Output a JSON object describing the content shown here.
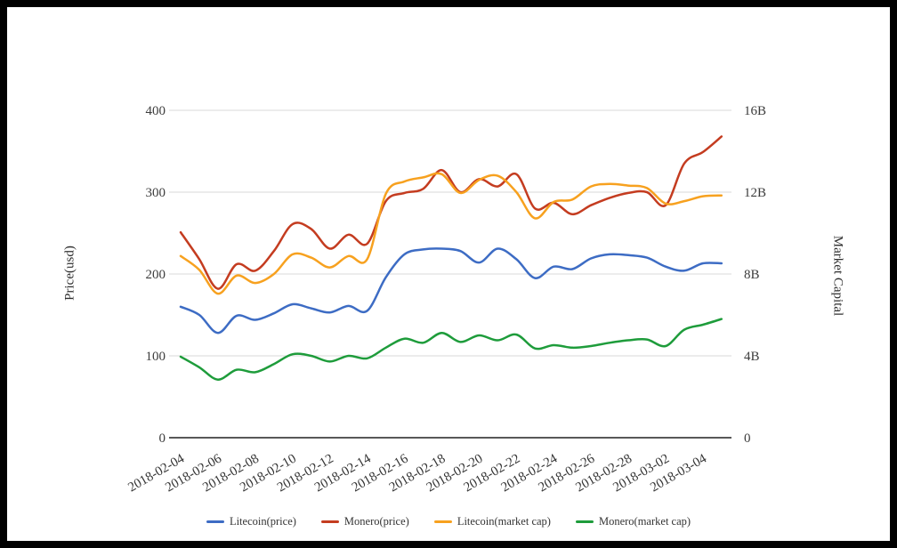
{
  "chart_data": {
    "type": "line",
    "smooth": true,
    "grid": true,
    "legend_position": "bottom",
    "x": [
      "2018-02-04",
      "2018-02-05",
      "2018-02-06",
      "2018-02-07",
      "2018-02-08",
      "2018-02-09",
      "2018-02-10",
      "2018-02-11",
      "2018-02-12",
      "2018-02-13",
      "2018-02-14",
      "2018-02-15",
      "2018-02-16",
      "2018-02-17",
      "2018-02-18",
      "2018-02-19",
      "2018-02-20",
      "2018-02-21",
      "2018-02-22",
      "2018-02-23",
      "2018-02-24",
      "2018-02-25",
      "2018-02-26",
      "2018-02-27",
      "2018-02-28",
      "2018-03-01",
      "2018-03-02",
      "2018-03-03",
      "2018-03-04",
      "2018-03-05"
    ],
    "x_tick_labels": [
      "2018-02-04",
      "2018-02-06",
      "2018-02-08",
      "2018-02-10",
      "2018-02-12",
      "2018-02-14",
      "2018-02-16",
      "2018-02-18",
      "2018-02-20",
      "2018-02-22",
      "2018-02-24",
      "2018-02-26",
      "2018-02-28",
      "2018-03-02",
      "2018-03-04"
    ],
    "left_axis": {
      "title": "Price(usd)",
      "tick_labels": [
        "0",
        "100",
        "200",
        "300",
        "400"
      ],
      "range": [
        0,
        400
      ]
    },
    "right_axis": {
      "title": "Market Capital",
      "tick_labels": [
        "0",
        "4B",
        "8B",
        "12B",
        "16B"
      ],
      "range": [
        0,
        16
      ]
    },
    "series": [
      {
        "name": "Litecoin(price)",
        "axis": "left",
        "color": "#3d6cc4",
        "values": [
          160,
          150,
          128,
          149,
          144,
          152,
          163,
          158,
          153,
          161,
          155,
          196,
          224,
          230,
          231,
          228,
          214,
          231,
          218,
          195,
          209,
          206,
          219,
          224,
          223,
          220,
          209,
          204,
          213,
          213
        ]
      },
      {
        "name": "Monero(price)",
        "axis": "left",
        "color": "#c43c20",
        "values": [
          251,
          218,
          182,
          212,
          204,
          228,
          261,
          255,
          231,
          248,
          237,
          289,
          299,
          304,
          327,
          300,
          316,
          307,
          322,
          280,
          287,
          273,
          284,
          293,
          299,
          300,
          284,
          335,
          349,
          368
        ]
      },
      {
        "name": "Litecoin(market cap)",
        "axis": "right",
        "color": "#f7a11f",
        "values": [
          8.88,
          8.2,
          7.04,
          7.92,
          7.56,
          8.0,
          8.96,
          8.8,
          8.32,
          8.88,
          8.72,
          11.92,
          12.52,
          12.72,
          12.88,
          11.96,
          12.6,
          12.8,
          12.0,
          10.72,
          11.52,
          11.64,
          12.28,
          12.4,
          12.32,
          12.2,
          11.44,
          11.56,
          11.8,
          11.84
        ]
      },
      {
        "name": "Monero(market cap)",
        "axis": "right",
        "color": "#1e9c3b",
        "values": [
          3.96,
          3.44,
          2.84,
          3.32,
          3.2,
          3.6,
          4.08,
          4.0,
          3.72,
          4.0,
          3.88,
          4.4,
          4.84,
          4.64,
          5.12,
          4.68,
          5.0,
          4.76,
          5.04,
          4.36,
          4.52,
          4.4,
          4.48,
          4.64,
          4.76,
          4.8,
          4.48,
          5.28,
          5.52,
          5.8
        ]
      }
    ],
    "style": {
      "grid_color": "#d9d9d9",
      "axis_line_color": "#212121",
      "tick_text_color": "#3c3c3c",
      "background": "#ffffff",
      "frame_border_color": "#000000"
    }
  }
}
